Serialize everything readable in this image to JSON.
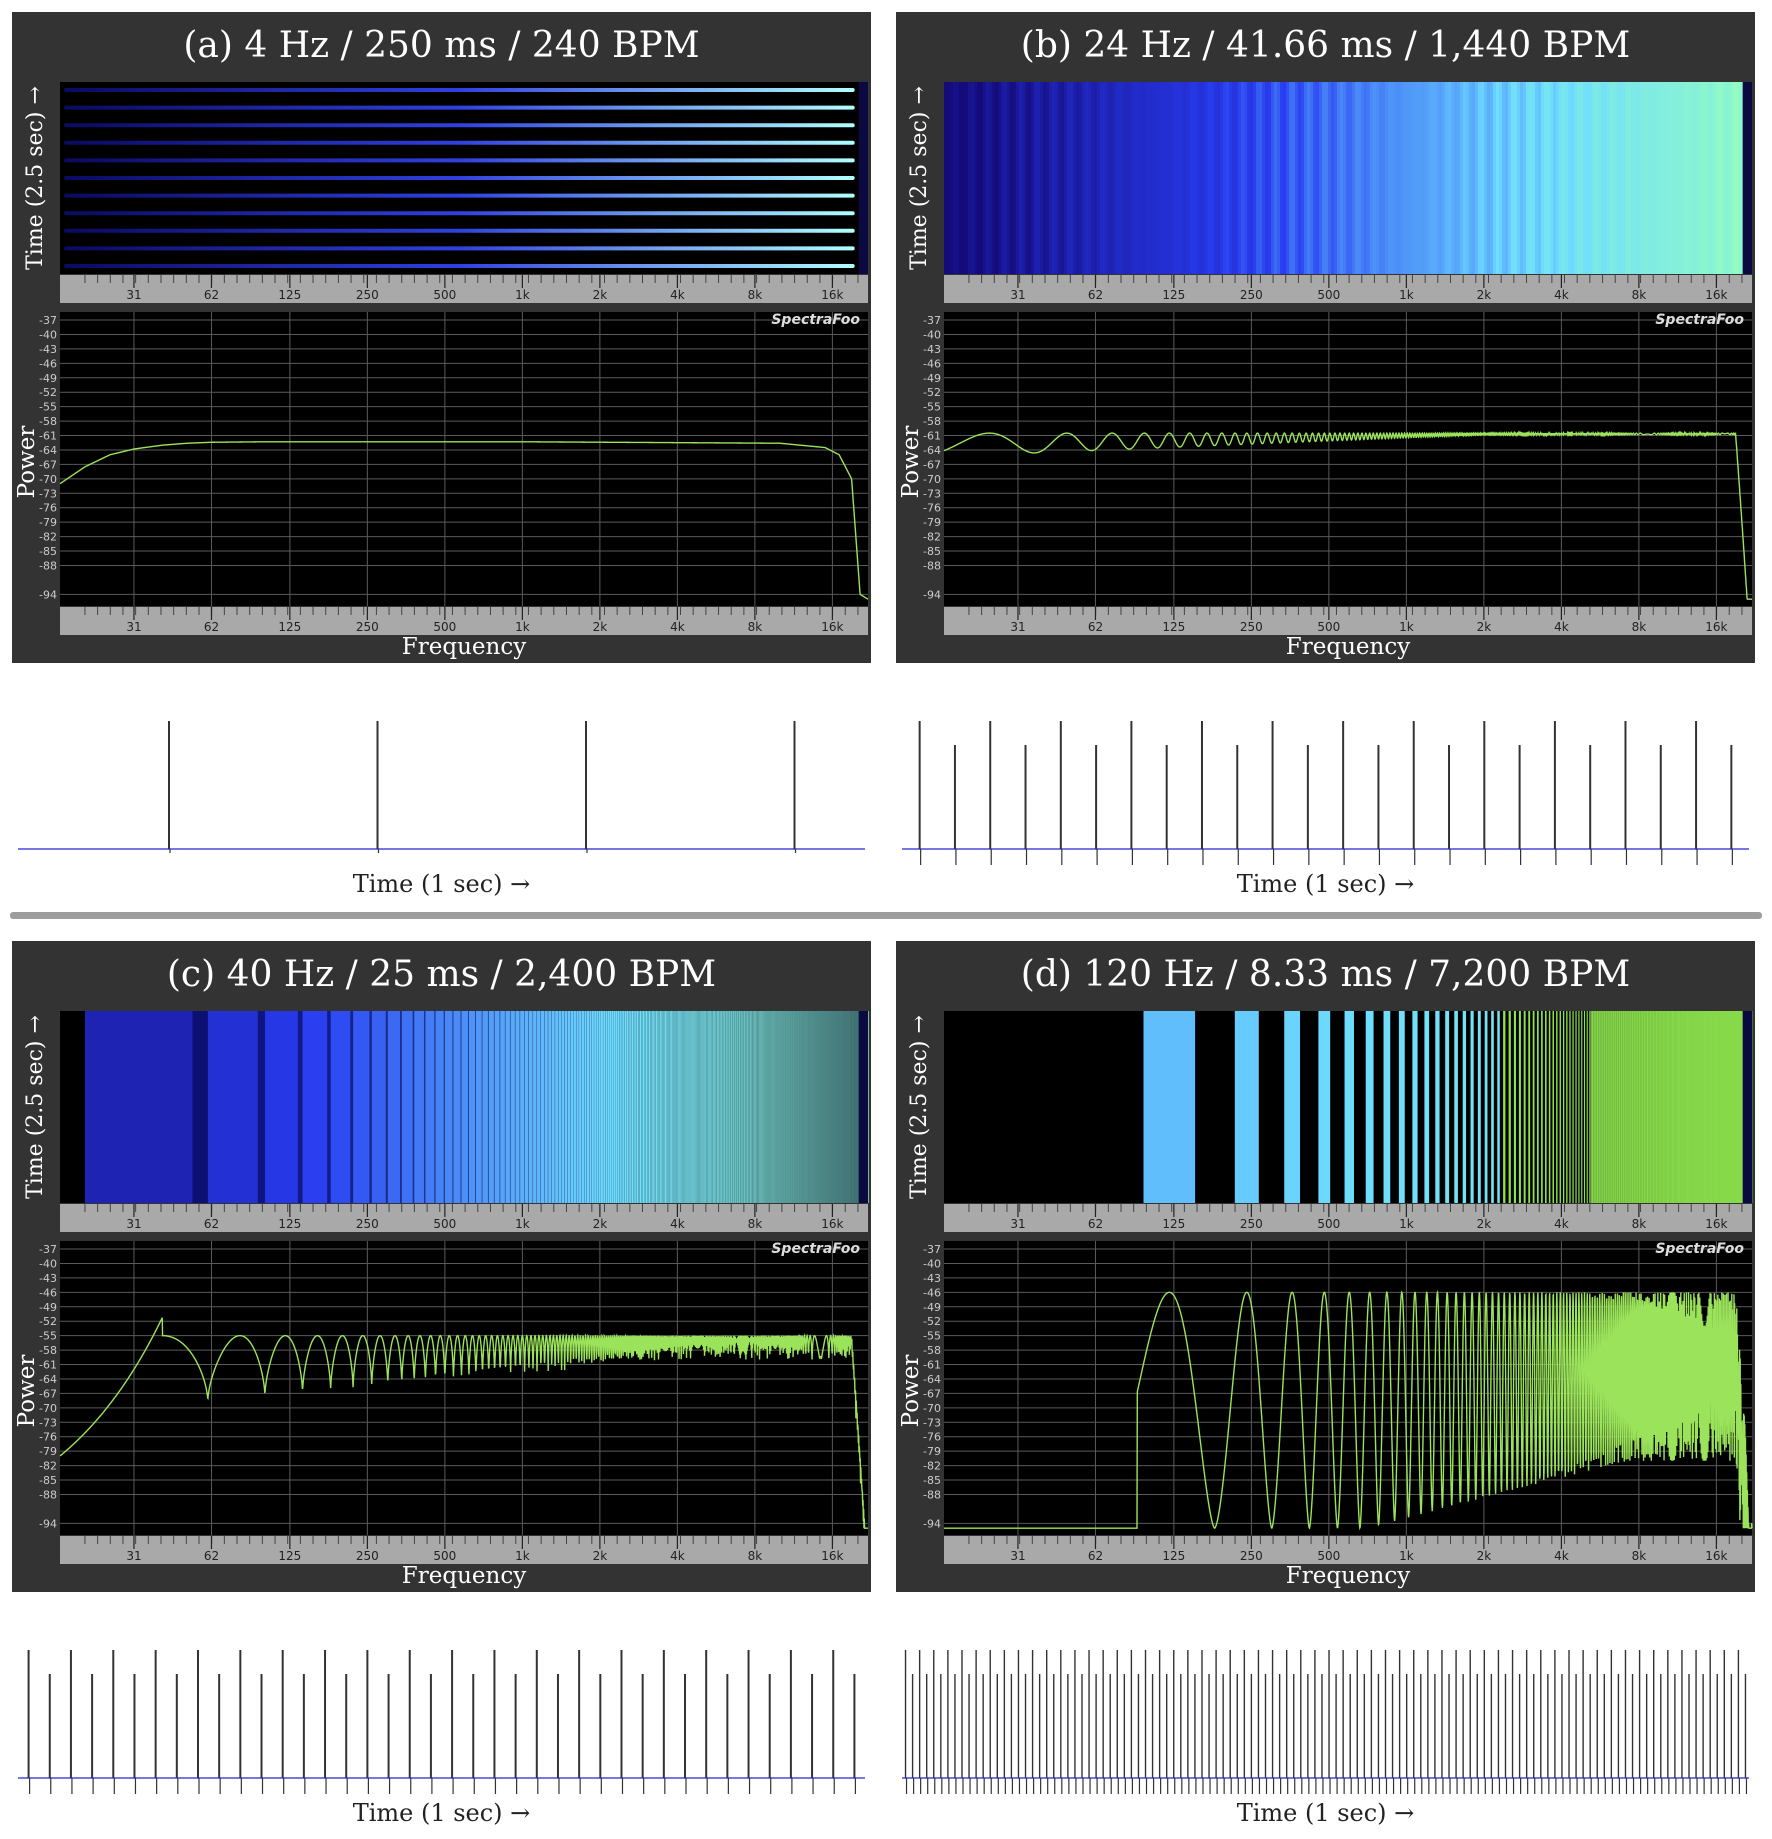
{
  "chart_data": [
    {
      "id": "a",
      "type": "line",
      "title": "(a) 4 Hz / 250 ms / 240 BPM",
      "spectrogram": {
        "ylabel": "Time (2.5 sec) →",
        "pattern": "horizontal-bands",
        "bands": 11
      },
      "spectrum": {
        "xlabel": "Frequency",
        "ylabel": "Power",
        "x_ticks": [
          "31",
          "62",
          "125",
          "250",
          "500",
          "1k",
          "2k",
          "4k",
          "8k",
          "16k"
        ],
        "y_ticks": [
          "-37",
          "-40",
          "-43",
          "-46",
          "-49",
          "-52",
          "-55",
          "-58",
          "-61",
          "-64",
          "-67",
          "-70",
          "-73",
          "-76",
          "-79",
          "-82",
          "-85",
          "-88",
          "-94"
        ],
        "x_scale": "log",
        "xlim": [
          16,
          22000
        ],
        "ylim": [
          -37,
          -96
        ],
        "brand": "SpectraFoo",
        "series": [
          {
            "x": [
              16,
              20,
              25,
              31,
              40,
              50,
              62,
              100,
              1000,
              10000,
              15000,
              17000,
              19000,
              20500,
              22000
            ],
            "y": [
              -71,
              -67.5,
              -65,
              -63.8,
              -63,
              -62.6,
              -62.4,
              -62.3,
              -62.3,
              -62.6,
              -63.5,
              -65,
              -70,
              -94,
              -95
            ]
          }
        ]
      },
      "pulses": {
        "xlabel": "Time (1 sec)  →",
        "rate_hz": 4,
        "count": 4
      }
    },
    {
      "id": "b",
      "type": "line",
      "title": "(b) 24 Hz / 41.66 ms / 1,440 BPM",
      "spectrogram": {
        "ylabel": "Time (2.5 sec) →",
        "pattern": "noise-gradient"
      },
      "spectrum": {
        "xlabel": "Frequency",
        "ylabel": "Power",
        "x_ticks": [
          "31",
          "62",
          "125",
          "250",
          "500",
          "1k",
          "2k",
          "4k",
          "8k",
          "16k"
        ],
        "y_ticks": [
          "-37",
          "-40",
          "-43",
          "-46",
          "-49",
          "-52",
          "-55",
          "-58",
          "-61",
          "-64",
          "-67",
          "-70",
          "-73",
          "-76",
          "-79",
          "-82",
          "-85",
          "-88",
          "-94"
        ],
        "x_scale": "log",
        "xlim": [
          16,
          22000
        ],
        "ylim": [
          -37,
          -96
        ],
        "brand": "SpectraFoo",
        "envelope": {
          "peak_db": -60.5,
          "dip_db_low": -68,
          "dip_db_high": -61,
          "rolloff_hz": 19000
        }
      },
      "pulses": {
        "xlabel": "Time (1 sec)  →",
        "rate_hz": 24,
        "count": 24
      }
    },
    {
      "id": "c",
      "type": "line",
      "title": "(c) 40 Hz / 25 ms / 2,400 BPM",
      "spectrogram": {
        "ylabel": "Time (2.5 sec) →",
        "pattern": "vertical-comb",
        "comb_hz": 40
      },
      "spectrum": {
        "xlabel": "Frequency",
        "ylabel": "Power",
        "x_ticks": [
          "31",
          "62",
          "125",
          "250",
          "500",
          "1k",
          "2k",
          "4k",
          "8k",
          "16k"
        ],
        "y_ticks": [
          "-37",
          "-40",
          "-43",
          "-46",
          "-49",
          "-52",
          "-55",
          "-58",
          "-61",
          "-64",
          "-67",
          "-70",
          "-73",
          "-76",
          "-79",
          "-82",
          "-85",
          "-88",
          "-94"
        ],
        "x_scale": "log",
        "xlim": [
          16,
          22000
        ],
        "ylim": [
          -37,
          -96
        ],
        "brand": "SpectraFoo",
        "envelope": {
          "peak_db": -55,
          "dip_db": -70,
          "comb_hz": 40,
          "rolloff_hz": 19000
        }
      },
      "pulses": {
        "xlabel": "Time (1 sec)  →",
        "rate_hz": 40,
        "count": 40
      }
    },
    {
      "id": "d",
      "type": "line",
      "title": "(d) 120 Hz / 8.33 ms / 7,200 BPM",
      "spectrogram": {
        "ylabel": "Time (2.5 sec) →",
        "pattern": "vertical-comb",
        "comb_hz": 120
      },
      "spectrum": {
        "xlabel": "Frequency",
        "ylabel": "Power",
        "x_ticks": [
          "31",
          "62",
          "125",
          "250",
          "500",
          "1k",
          "2k",
          "4k",
          "8k",
          "16k"
        ],
        "y_ticks": [
          "-37",
          "-40",
          "-43",
          "-46",
          "-49",
          "-52",
          "-55",
          "-58",
          "-61",
          "-64",
          "-67",
          "-70",
          "-73",
          "-76",
          "-79",
          "-82",
          "-85",
          "-88",
          "-94"
        ],
        "x_scale": "log",
        "xlim": [
          16,
          22000
        ],
        "ylim": [
          -37,
          -96
        ],
        "brand": "SpectraFoo",
        "envelope": {
          "peak_db": -46,
          "dip_db": -95,
          "comb_hz": 120,
          "rolloff_hz": 19000
        }
      },
      "pulses": {
        "xlabel": "Time (1 sec)  →",
        "rate_hz": 120,
        "count": 120
      }
    }
  ],
  "colors": {
    "panel_bg": "#333333",
    "plot_bg": "#000000",
    "grid": "#5a5a5a",
    "axis_strip": "#a9a9a9",
    "trace": "#9be35a",
    "baseline": "#4a4ad8",
    "pulse": "#333333"
  }
}
